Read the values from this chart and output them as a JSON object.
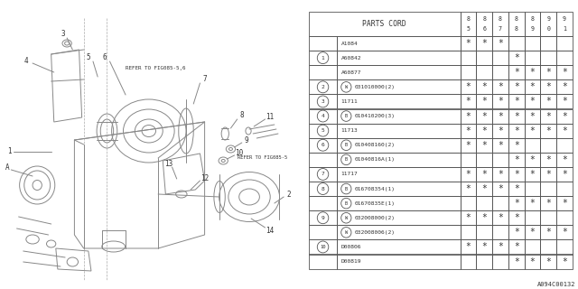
{
  "fig_code": "A094C00132",
  "table_header": "PARTS CORD",
  "col_headers": [
    "85",
    "86",
    "87",
    "88",
    "89",
    "90",
    "91"
  ],
  "rows": [
    {
      "num": null,
      "prefix": "",
      "part": "A1084",
      "stars": [
        1,
        1,
        1,
        0,
        0,
        0,
        0
      ]
    },
    {
      "num": 1,
      "prefix": "",
      "part": "A60842",
      "stars": [
        0,
        0,
        0,
        1,
        0,
        0,
        0
      ]
    },
    {
      "num": null,
      "prefix": "",
      "part": "A60877",
      "stars": [
        0,
        0,
        0,
        1,
        1,
        1,
        1
      ]
    },
    {
      "num": 2,
      "prefix": "W",
      "part": "031010000(2)",
      "stars": [
        1,
        1,
        1,
        1,
        1,
        1,
        1
      ]
    },
    {
      "num": 3,
      "prefix": "",
      "part": "11711",
      "stars": [
        1,
        1,
        1,
        1,
        1,
        1,
        1
      ]
    },
    {
      "num": 4,
      "prefix": "B",
      "part": "010410200(3)",
      "stars": [
        1,
        1,
        1,
        1,
        1,
        1,
        1
      ]
    },
    {
      "num": 5,
      "prefix": "",
      "part": "11713",
      "stars": [
        1,
        1,
        1,
        1,
        1,
        1,
        1
      ]
    },
    {
      "num": 6,
      "prefix": "B",
      "part": "010408160(2)",
      "stars": [
        1,
        1,
        1,
        1,
        0,
        0,
        0
      ]
    },
    {
      "num": null,
      "prefix": "B",
      "part": "01040816A(1)",
      "stars": [
        0,
        0,
        0,
        1,
        1,
        1,
        1
      ]
    },
    {
      "num": 7,
      "prefix": "",
      "part": "11717",
      "stars": [
        1,
        1,
        1,
        1,
        1,
        1,
        1
      ]
    },
    {
      "num": 8,
      "prefix": "B",
      "part": "016708354(1)",
      "stars": [
        1,
        1,
        1,
        1,
        0,
        0,
        0
      ]
    },
    {
      "num": null,
      "prefix": "B",
      "part": "01670835E(1)",
      "stars": [
        0,
        0,
        0,
        1,
        1,
        1,
        1
      ]
    },
    {
      "num": 9,
      "prefix": "W",
      "part": "032008000(2)",
      "stars": [
        1,
        1,
        1,
        1,
        0,
        0,
        0
      ]
    },
    {
      "num": null,
      "prefix": "W",
      "part": "032008006(2)",
      "stars": [
        0,
        0,
        0,
        1,
        1,
        1,
        1
      ]
    },
    {
      "num": 10,
      "prefix": "",
      "part": "D00806",
      "stars": [
        1,
        1,
        1,
        1,
        0,
        0,
        0
      ]
    },
    {
      "num": null,
      "prefix": "",
      "part": "D00819",
      "stars": [
        0,
        0,
        0,
        1,
        1,
        1,
        1
      ]
    }
  ],
  "bg_color": "#ffffff",
  "line_color": "#999999",
  "text_color": "#333333",
  "table_line_color": "#555555"
}
